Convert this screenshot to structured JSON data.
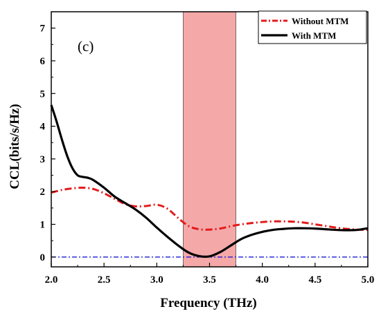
{
  "chart_data": {
    "type": "line",
    "title": "",
    "panel_label": "(c)",
    "xlabel": "Frequency (THz)",
    "ylabel": "CCL(bits/s/Hz)",
    "xlim": [
      2.0,
      5.0
    ],
    "ylim": [
      -0.3,
      7.5
    ],
    "x_ticks": [
      2.0,
      2.5,
      3.0,
      3.5,
      4.0,
      4.5,
      5.0
    ],
    "x_tick_labels": [
      "2.0",
      "2.5",
      "3.0",
      "3.5",
      "4.0",
      "4.5",
      "5.0"
    ],
    "y_ticks": [
      0,
      1,
      2,
      3,
      4,
      5,
      6,
      7
    ],
    "y_tick_labels": [
      "0",
      "1",
      "2",
      "3",
      "4",
      "5",
      "6",
      "7"
    ],
    "grid": false,
    "legend_position": "top-right",
    "highlight_band": {
      "x_range": [
        3.25,
        3.75
      ],
      "color": "#f4a8a8"
    },
    "reference_line": {
      "y": 0,
      "color": "#1a1ad6",
      "style": "dash-dot"
    },
    "series": [
      {
        "name": "Without MTM",
        "color": "#e31a1a",
        "style": "dash-dot",
        "x": [
          2.0,
          2.1,
          2.2,
          2.3,
          2.4,
          2.5,
          2.6,
          2.7,
          2.8,
          2.9,
          3.0,
          3.1,
          3.2,
          3.3,
          3.4,
          3.5,
          3.6,
          3.7,
          3.8,
          3.9,
          4.0,
          4.1,
          4.2,
          4.3,
          4.4,
          4.5,
          4.6,
          4.7,
          4.8,
          4.9,
          5.0
        ],
        "y": [
          1.97,
          2.05,
          2.1,
          2.12,
          2.08,
          1.95,
          1.78,
          1.62,
          1.55,
          1.56,
          1.6,
          1.48,
          1.2,
          0.95,
          0.85,
          0.84,
          0.87,
          0.94,
          1.0,
          1.04,
          1.07,
          1.09,
          1.09,
          1.08,
          1.05,
          1.0,
          0.95,
          0.9,
          0.86,
          0.84,
          0.83
        ]
      },
      {
        "name": "With MTM",
        "color": "#000000",
        "style": "solid",
        "x": [
          2.0,
          2.05,
          2.1,
          2.15,
          2.2,
          2.25,
          2.3,
          2.35,
          2.4,
          2.5,
          2.6,
          2.7,
          2.8,
          2.9,
          3.0,
          3.1,
          3.2,
          3.3,
          3.4,
          3.5,
          3.6,
          3.7,
          3.8,
          3.9,
          4.0,
          4.1,
          4.2,
          4.3,
          4.4,
          4.5,
          4.6,
          4.7,
          4.8,
          4.9,
          5.0
        ],
        "y": [
          4.65,
          4.15,
          3.6,
          3.1,
          2.72,
          2.5,
          2.45,
          2.42,
          2.35,
          2.12,
          1.85,
          1.65,
          1.45,
          1.2,
          0.9,
          0.62,
          0.36,
          0.14,
          0.03,
          0.02,
          0.15,
          0.35,
          0.55,
          0.68,
          0.77,
          0.83,
          0.86,
          0.88,
          0.88,
          0.87,
          0.85,
          0.83,
          0.82,
          0.83,
          0.88
        ]
      }
    ]
  }
}
